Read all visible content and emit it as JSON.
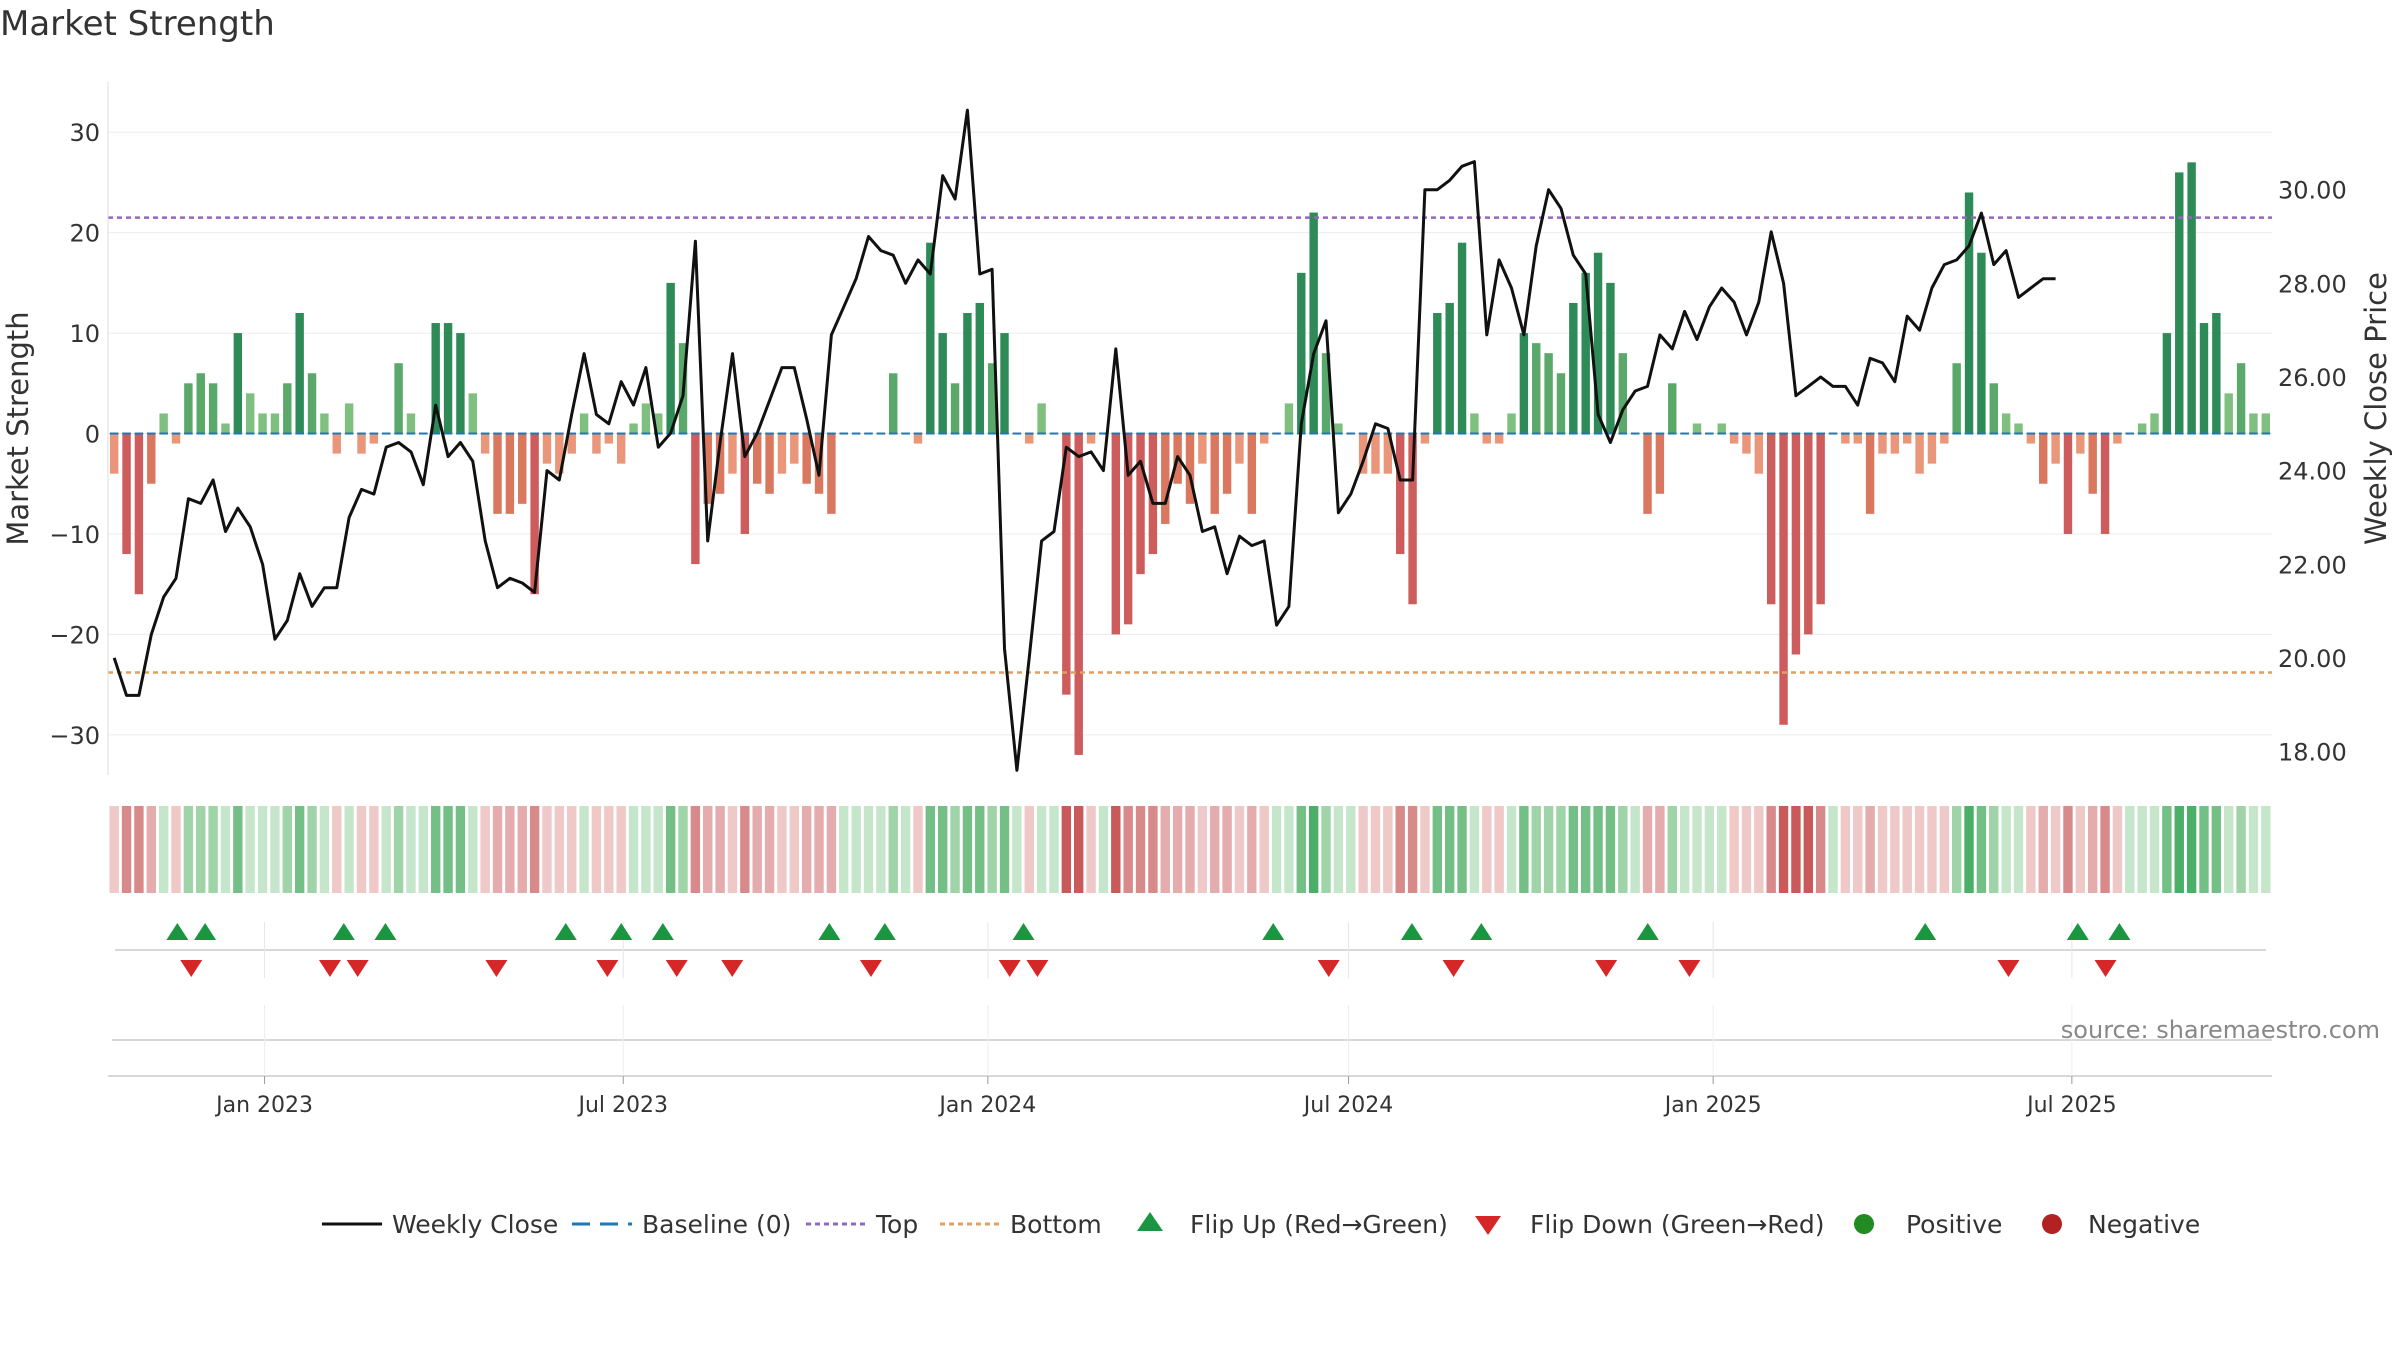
{
  "chart_data": {
    "type": "bar",
    "title": "Market Strength",
    "ylabel_left": "Market Strength",
    "ylabel_right": "Weekly Close Price",
    "source": "source: sharemaestro.com",
    "left_ylim": [
      -34,
      35
    ],
    "left_ticks": [
      30,
      20,
      10,
      0,
      -10,
      -20,
      -30
    ],
    "left_tick_labels": [
      "30",
      "20",
      "10",
      "0",
      "−10",
      "−20",
      "−30"
    ],
    "right_ylim": [
      17.5,
      32.3
    ],
    "right_ticks": [
      30,
      28,
      26,
      24,
      22,
      20,
      18
    ],
    "right_tick_labels": [
      "30.00",
      "28.00",
      "26.00",
      "24.00",
      "22.00",
      "20.00",
      "18.00"
    ],
    "top_line": 21.5,
    "bottom_line": -23.8,
    "x_date_start": "2022-10-14",
    "x_date_end": "2025-10-10",
    "x_tick_dates": [
      "2023-01-01",
      "2023-07-01",
      "2024-01-01",
      "2024-07-01",
      "2025-01-01",
      "2025-07-01"
    ],
    "x_tick_labels": [
      "Jan 2023",
      "Jul 2023",
      "Jan 2024",
      "Jul 2024",
      "Jan 2025",
      "Jul 2025"
    ],
    "strength": [
      -4,
      -12,
      -16,
      -5,
      2,
      -1,
      5,
      6,
      5,
      1,
      10,
      4,
      2,
      2,
      5,
      12,
      6,
      2,
      -2,
      3,
      -2,
      -1,
      0,
      7,
      2,
      0,
      11,
      11,
      10,
      4,
      -2,
      -8,
      -8,
      -7,
      -16,
      -3,
      -4,
      -2,
      2,
      -2,
      -1,
      -3,
      1,
      3,
      2,
      15,
      9,
      -13,
      -7,
      -6,
      -4,
      -10,
      -5,
      -6,
      -4,
      -3,
      -5,
      -6,
      -8,
      0,
      0,
      0,
      0,
      6,
      0,
      -1,
      19,
      10,
      5,
      12,
      13,
      7,
      10,
      0,
      -1,
      3,
      0,
      -26,
      -32,
      -1,
      0,
      -20,
      -19,
      -14,
      -12,
      -9,
      -5,
      -7,
      -3,
      -8,
      -6,
      -3,
      -8,
      -1,
      0,
      3,
      16,
      22,
      8,
      1,
      0,
      -4,
      -4,
      -4,
      -12,
      -17,
      -1,
      12,
      13,
      19,
      2,
      -1,
      -1,
      2,
      10,
      9,
      8,
      6,
      13,
      16,
      18,
      15,
      8,
      0,
      -8,
      -6,
      5,
      0,
      1,
      0,
      1,
      -1,
      -2,
      -4,
      -17,
      -29,
      -22,
      -20,
      -17,
      0,
      -1,
      -1,
      -8,
      -2,
      -2,
      -1,
      -4,
      -3,
      -1,
      7,
      24,
      18,
      5,
      2,
      1,
      -1,
      -5,
      -3,
      -10,
      -2,
      -6,
      -10,
      -1,
      0,
      1,
      2,
      10,
      26,
      27,
      11,
      12,
      4,
      7,
      2,
      2
    ],
    "weekly_close": [
      20.0,
      19.2,
      19.2,
      20.5,
      21.3,
      21.7,
      23.4,
      23.3,
      23.8,
      22.7,
      23.2,
      22.8,
      22.0,
      20.4,
      20.8,
      21.8,
      21.1,
      21.5,
      21.5,
      23.0,
      23.6,
      23.5,
      24.5,
      24.6,
      24.4,
      23.7,
      25.4,
      24.3,
      24.6,
      24.2,
      22.5,
      21.5,
      21.7,
      21.6,
      21.4,
      24.0,
      23.8,
      25.2,
      26.5,
      25.2,
      25.0,
      25.9,
      25.4,
      26.2,
      24.5,
      24.8,
      25.6,
      28.9,
      22.5,
      24.6,
      26.5,
      24.3,
      24.8,
      25.5,
      26.2,
      26.2,
      25.1,
      23.9,
      26.9,
      27.5,
      28.1,
      29.0,
      28.7,
      28.6,
      28.0,
      28.5,
      28.2,
      30.3,
      29.8,
      31.7,
      28.2,
      28.3,
      20.2,
      17.6,
      20.0,
      22.5,
      22.7,
      24.5,
      24.3,
      24.4,
      24.0,
      26.6,
      23.9,
      24.2,
      23.3,
      23.3,
      24.3,
      23.9,
      22.7,
      22.8,
      21.8,
      22.6,
      22.4,
      22.5,
      20.7,
      21.1,
      25.0,
      26.5,
      27.2,
      23.1,
      23.5,
      24.2,
      25.0,
      24.9,
      23.8,
      23.8,
      30.0,
      30.0,
      30.2,
      30.5,
      30.6,
      26.9,
      28.5,
      27.9,
      26.9,
      28.8,
      30.0,
      29.6,
      28.6,
      28.2,
      25.2,
      24.6,
      25.3,
      25.7,
      25.8,
      26.9,
      26.6,
      27.4,
      26.8,
      27.5,
      27.9,
      27.6,
      26.9,
      27.6,
      29.1,
      28.0,
      25.6,
      25.8,
      26.0,
      25.8,
      25.8,
      25.4,
      26.4,
      26.3,
      25.9,
      27.3,
      27.0,
      27.9,
      28.4,
      28.5,
      28.8,
      29.5,
      28.4,
      28.7,
      27.7,
      27.9,
      28.1,
      28.1
    ],
    "flip_up_dates": [
      "2022-11-18",
      "2022-12-02",
      "2023-02-10",
      "2023-03-03",
      "2023-06-02",
      "2023-06-30",
      "2023-07-21",
      "2023-10-13",
      "2023-11-10",
      "2024-01-19",
      "2024-05-24",
      "2024-08-02",
      "2024-09-06",
      "2024-11-29",
      "2025-04-18",
      "2025-07-04",
      "2025-07-25"
    ],
    "flip_down_dates": [
      "2022-11-25",
      "2023-02-03",
      "2023-02-17",
      "2023-04-28",
      "2023-06-23",
      "2023-07-28",
      "2023-08-25",
      "2023-11-03",
      "2024-01-12",
      "2024-01-26",
      "2024-06-21",
      "2024-08-23",
      "2024-11-08",
      "2024-12-20",
      "2025-05-30",
      "2025-07-18"
    ],
    "legend": [
      "Weekly Close",
      "Baseline (0)",
      "Top",
      "Bottom",
      "Flip Up (Red→Green)",
      "Flip Down (Green→Red)",
      "Positive",
      "Negative"
    ],
    "colors": {
      "close_line": "#111111",
      "baseline": "#1f77b4",
      "top": "#9467bd",
      "bottom": "#e0a060",
      "pos_strong": "#2e8b57",
      "pos_light": "#7fbf7f",
      "neg_strong": "#cd5c5c",
      "neg_light": "#e9967a",
      "flip_up": "#1a9641",
      "flip_down": "#d62728",
      "positive_dot": "#228b22",
      "negative_dot": "#b22222"
    }
  }
}
